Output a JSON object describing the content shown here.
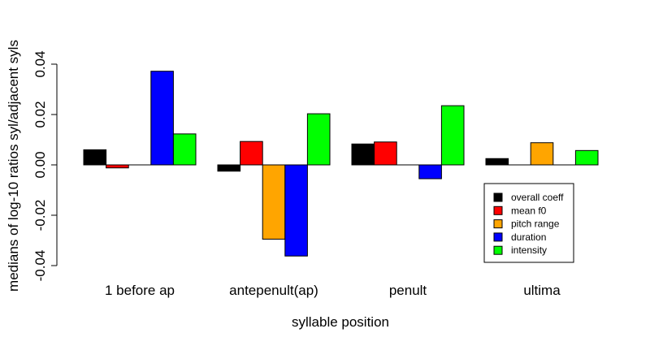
{
  "chart_data": {
    "type": "bar",
    "title": "",
    "xlabel": "syllable position",
    "ylabel": "medians of log-10 ratios syl/adjacent syls",
    "ylim": [
      -0.04,
      0.04
    ],
    "yticks": [
      "-0.04",
      "-0.02",
      "0.00",
      "0.02",
      "0.04"
    ],
    "yticks_values": [
      -0.04,
      -0.02,
      0.0,
      0.02,
      0.04
    ],
    "categories": [
      "1 before ap",
      "antepenult(ap)",
      "penult",
      "ultima"
    ],
    "grid": false,
    "legend_position": "bottom-right",
    "series": [
      {
        "name": "overall coeff",
        "color": "#000000",
        "values": [
          0.006,
          -0.0025,
          0.0083,
          0.0025
        ]
      },
      {
        "name": "mean f0",
        "color": "#ff0000",
        "values": [
          -0.0012,
          0.0093,
          0.0091,
          0.0
        ]
      },
      {
        "name": "pitch range",
        "color": "#ffa500",
        "values": [
          0.0,
          -0.0295,
          0.0,
          0.0088
        ]
      },
      {
        "name": "duration",
        "color": "#0000ff",
        "values": [
          0.0372,
          -0.0362,
          -0.0055,
          0.0
        ]
      },
      {
        "name": "intensity",
        "color": "#00ff00",
        "values": [
          0.0123,
          0.0203,
          0.0235,
          0.0057
        ]
      }
    ]
  }
}
